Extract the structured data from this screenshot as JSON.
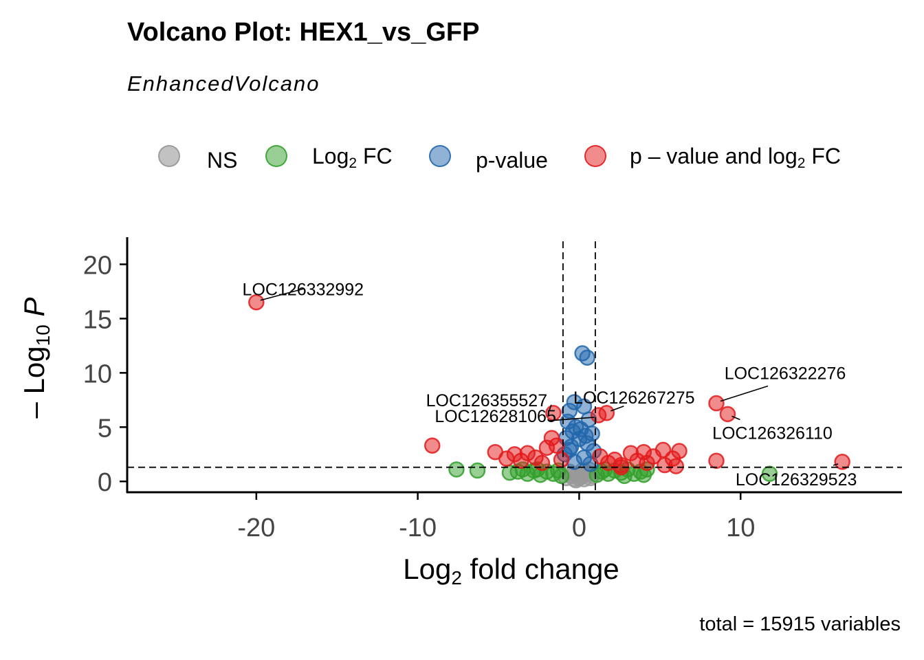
{
  "title": "Volcano Plot: HEX1_vs_GFP",
  "subtitle": "EnhancedVolcano",
  "caption": "total = 15915 variables",
  "legend": [
    {
      "label": "NS",
      "sub": "",
      "suffix": "",
      "color": "#999999"
    },
    {
      "label": "Log",
      "sub": "2",
      "suffix": " FC",
      "color": "#33a02c"
    },
    {
      "label": "p-value",
      "sub": "",
      "suffix": "",
      "color": "#2166ac"
    },
    {
      "label": "p – value and log",
      "sub": "2",
      "suffix": " FC",
      "color": "#e31a1c"
    }
  ],
  "chart_data": {
    "type": "scatter",
    "xlabel": "Log2 fold change",
    "ylabel": "– Log10 P",
    "xlim": [
      -28,
      20
    ],
    "ylim": [
      -1,
      22.5
    ],
    "x_ticks": [
      -20,
      -10,
      0,
      10
    ],
    "x_tick_labels": [
      "-20",
      "-10",
      "0",
      "10"
    ],
    "y_ticks": [
      0,
      5,
      10,
      15,
      20
    ],
    "y_tick_labels": [
      "0",
      "5",
      "10",
      "15",
      "20"
    ],
    "cutoffs": {
      "fc": [
        -1,
        1
      ],
      "p_y": 1.3
    },
    "colors": {
      "NS": "#999999",
      "FC": "#33a02c",
      "P": "#2166ac",
      "FCP": "#e31a1c"
    },
    "points": {
      "NS": [
        [
          -0.8,
          0.3
        ],
        [
          -0.5,
          0.5
        ],
        [
          -0.3,
          0.2
        ],
        [
          -0.1,
          0.6
        ],
        [
          0.1,
          0.4
        ],
        [
          0.3,
          0.2
        ],
        [
          0.5,
          0.7
        ],
        [
          0.7,
          0.3
        ],
        [
          -0.6,
          0.9
        ],
        [
          0.2,
          1.0
        ],
        [
          -0.2,
          0.1
        ],
        [
          0.6,
          1.1
        ],
        [
          0,
          0.3
        ],
        [
          -0.4,
          0.7
        ],
        [
          0.4,
          0.9
        ],
        [
          0.8,
          0.5
        ]
      ],
      "FC": [
        [
          -7.6,
          1.1
        ],
        [
          -6.3,
          1.0
        ],
        [
          -4.3,
          0.8
        ],
        [
          -3.8,
          0.9
        ],
        [
          -3.2,
          0.7
        ],
        [
          -2.8,
          1.0
        ],
        [
          -2.4,
          0.6
        ],
        [
          -2.0,
          0.9
        ],
        [
          -1.6,
          0.7
        ],
        [
          -1.3,
          1.0
        ],
        [
          -1.1,
          0.5
        ],
        [
          1.1,
          0.6
        ],
        [
          1.4,
          0.9
        ],
        [
          1.8,
          0.7
        ],
        [
          2.2,
          1.0
        ],
        [
          2.6,
          0.8
        ],
        [
          3.0,
          1.1
        ],
        [
          3.4,
          0.7
        ],
        [
          3.8,
          0.9
        ],
        [
          4.2,
          1.1
        ],
        [
          4.0,
          0.6
        ],
        [
          11.8,
          0.7
        ],
        [
          -3.5,
          1.1
        ],
        [
          -2.6,
          1.1
        ],
        [
          2.8,
          0.5
        ],
        [
          1.6,
          1.1
        ]
      ],
      "P": [
        [
          0.2,
          11.8
        ],
        [
          0.5,
          11.4
        ],
        [
          -0.3,
          7.3
        ],
        [
          -0.6,
          6.5
        ],
        [
          0.3,
          6.9
        ],
        [
          -0.7,
          5.5
        ],
        [
          0.6,
          5.7
        ],
        [
          -0.2,
          5.0
        ],
        [
          0.8,
          4.4
        ],
        [
          -0.8,
          4.0
        ],
        [
          0.1,
          4.8
        ],
        [
          0.5,
          3.5
        ],
        [
          -0.5,
          3.2
        ],
        [
          0.9,
          2.8
        ],
        [
          -0.9,
          2.5
        ],
        [
          0.3,
          2.2
        ],
        [
          -0.3,
          1.8
        ],
        [
          0.7,
          1.6
        ],
        [
          -0.6,
          2.9
        ],
        [
          0.0,
          3.9
        ],
        [
          0.4,
          4.2
        ],
        [
          -0.4,
          4.6
        ]
      ],
      "FCP": [
        [
          -20,
          16.5
        ],
        [
          -9.1,
          3.3
        ],
        [
          -5.2,
          2.7
        ],
        [
          -4.5,
          2.1
        ],
        [
          -4.0,
          2.5
        ],
        [
          -3.6,
          1.9
        ],
        [
          -3.2,
          2.6
        ],
        [
          -2.7,
          2.2
        ],
        [
          -2.3,
          1.7
        ],
        [
          -2.0,
          3.1
        ],
        [
          -1.7,
          4.0
        ],
        [
          -1.4,
          3.3
        ],
        [
          -1.6,
          6.3
        ],
        [
          -1.1,
          2.0
        ],
        [
          1.2,
          6.1
        ],
        [
          1.7,
          6.3
        ],
        [
          1.3,
          2.3
        ],
        [
          1.8,
          1.7
        ],
        [
          2.2,
          2.0
        ],
        [
          2.6,
          1.5
        ],
        [
          3.2,
          2.6
        ],
        [
          3.6,
          1.9
        ],
        [
          4.0,
          2.7
        ],
        [
          4.6,
          2.3
        ],
        [
          5.2,
          2.9
        ],
        [
          5.8,
          2.1
        ],
        [
          6.2,
          2.8
        ],
        [
          6.0,
          1.4
        ],
        [
          5.3,
          1.5
        ],
        [
          4.2,
          1.7
        ],
        [
          8.5,
          7.2
        ],
        [
          9.2,
          6.2
        ],
        [
          8.5,
          1.9
        ],
        [
          16.3,
          1.8
        ],
        [
          2.6,
          1.3
        ]
      ]
    },
    "labels": [
      {
        "text": "LOC126332992",
        "x": -20,
        "y": 16.5
      },
      {
        "text": "LOC126322276",
        "x": 8.5,
        "y": 7.2
      },
      {
        "text": "LOC126355527",
        "x": -1.6,
        "y": 6.3
      },
      {
        "text": "LOC126267275",
        "x": 1.7,
        "y": 6.3
      },
      {
        "text": "LOC126281065",
        "x": 1.2,
        "y": 6.1
      },
      {
        "text": "LOC126326110",
        "x": 9.2,
        "y": 6.2
      },
      {
        "text": "LOC126329523",
        "x": 16.3,
        "y": 1.8
      }
    ]
  }
}
